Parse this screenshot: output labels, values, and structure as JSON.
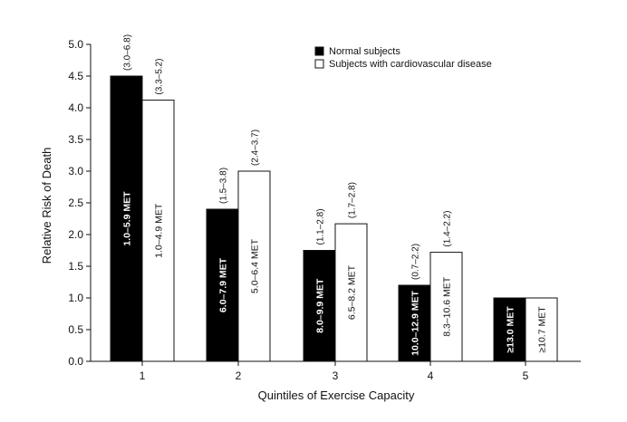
{
  "chart_data": {
    "type": "bar",
    "title": "",
    "xlabel": "Quintiles of Exercise Capacity",
    "ylabel": "Relative Risk of Death",
    "ylim": [
      0,
      5.0
    ],
    "yticks": [
      "0.0",
      "0.5",
      "1.0",
      "1.5",
      "2.0",
      "2.5",
      "3.0",
      "3.5",
      "4.0",
      "4.5",
      "5.0"
    ],
    "categories": [
      "1",
      "2",
      "3",
      "4",
      "5"
    ],
    "grid": false,
    "legend_position": "top-right",
    "series": [
      {
        "name": "Normal subjects",
        "color": "#000000",
        "values": [
          4.5,
          2.4,
          1.75,
          1.2,
          1.0
        ],
        "bar_labels": [
          "1.0–5.9 MET",
          "6.0–7.9 MET",
          "8.0–9.9 MET",
          "10.0–12.9 MET",
          "≥13.0 MET"
        ],
        "ci_labels": [
          "(3.0–6.8)",
          "(1.5–3.8)",
          "(1.1–2.8)",
          "(0.7–2.2)",
          ""
        ]
      },
      {
        "name": "Subjects with cardiovascular disease",
        "color": "#ffffff",
        "values": [
          4.12,
          3.0,
          2.17,
          1.72,
          1.0
        ],
        "bar_labels": [
          "1.0–4.9 MET",
          "5.0–6.4 MET",
          "6.5–8.2 MET",
          "8.3–10.6 MET",
          "≥10.7 MET"
        ],
        "ci_labels": [
          "(3.3–5.2)",
          "(2.4–3.7)",
          "(1.7–2.8)",
          "(1.4–2.2)",
          ""
        ]
      }
    ]
  }
}
